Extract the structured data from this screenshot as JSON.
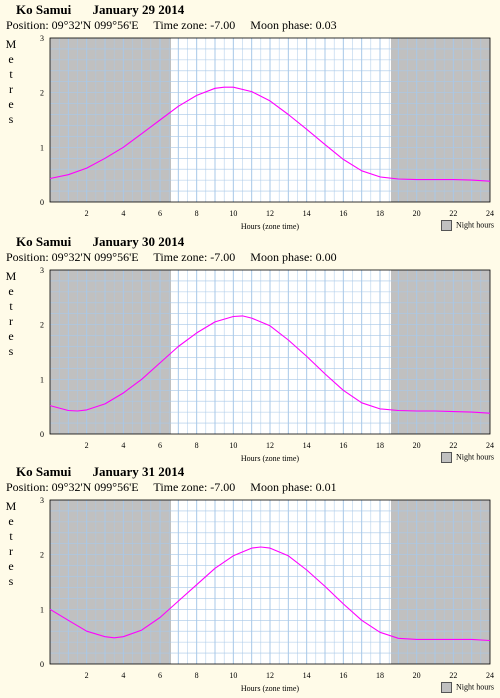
{
  "y_axis_label": "Metres",
  "x_axis_label": "Hours (zone time)",
  "legend": {
    "label": "Night hours",
    "color": "#c0c0c0"
  },
  "colors": {
    "curve": "#ff00ff",
    "grid": "#a8c8e8",
    "night": "#c0c0c0",
    "background": "#fffbe8"
  },
  "panels": [
    {
      "location": "Ko Samui",
      "date": "January 29 2014",
      "position": "Position: 09°32'N 099°56'E",
      "timezone": "Time zone:  -7.00",
      "moon": "Moon phase: 0.03"
    },
    {
      "location": "Ko Samui",
      "date": "January 30 2014",
      "position": "Position: 09°32'N 099°56'E",
      "timezone": "Time zone:  -7.00",
      "moon": "Moon phase: 0.00"
    },
    {
      "location": "Ko Samui",
      "date": "January 31 2014",
      "position": "Position: 09°32'N 099°56'E",
      "timezone": "Time zone:  -7.00",
      "moon": "Moon phase: 0.01"
    }
  ],
  "chart_data": [
    {
      "type": "line",
      "title": "Ko Samui January 29 2014",
      "xlabel": "Hours (zone time)",
      "ylabel": "Metres",
      "xlim": [
        0,
        24
      ],
      "ylim": [
        0,
        3
      ],
      "xticks": [
        2,
        4,
        6,
        8,
        10,
        12,
        14,
        16,
        18,
        20,
        22,
        24
      ],
      "yticks": [
        0,
        1,
        2,
        3
      ],
      "night_hours": [
        [
          0,
          6.6
        ],
        [
          18.6,
          24
        ]
      ],
      "grid": true,
      "series": [
        {
          "x": [
            0,
            1,
            2,
            3,
            4,
            5,
            6,
            7,
            8,
            9,
            9.5,
            10,
            11,
            12,
            13,
            14,
            15,
            16,
            17,
            18,
            19,
            20,
            21,
            22,
            23,
            24
          ],
          "values": [
            0.43,
            0.5,
            0.62,
            0.8,
            1.0,
            1.25,
            1.5,
            1.75,
            1.95,
            2.08,
            2.1,
            2.1,
            2.02,
            1.85,
            1.6,
            1.33,
            1.05,
            0.78,
            0.57,
            0.46,
            0.42,
            0.41,
            0.41,
            0.41,
            0.4,
            0.38
          ]
        }
      ]
    },
    {
      "type": "line",
      "title": "Ko Samui January 30 2014",
      "xlabel": "Hours (zone time)",
      "ylabel": "Metres",
      "xlim": [
        0,
        24
      ],
      "ylim": [
        0,
        3
      ],
      "xticks": [
        2,
        4,
        6,
        8,
        10,
        12,
        14,
        16,
        18,
        20,
        22,
        24
      ],
      "yticks": [
        0,
        1,
        2,
        3
      ],
      "night_hours": [
        [
          0,
          6.6
        ],
        [
          18.6,
          24
        ]
      ],
      "grid": true,
      "series": [
        {
          "x": [
            0,
            1,
            1.5,
            2,
            3,
            4,
            5,
            6,
            7,
            8,
            9,
            10,
            10.5,
            11,
            12,
            13,
            14,
            15,
            16,
            17,
            18,
            19,
            20,
            21,
            22,
            23,
            24
          ],
          "values": [
            0.52,
            0.43,
            0.42,
            0.44,
            0.55,
            0.75,
            1.0,
            1.3,
            1.6,
            1.85,
            2.05,
            2.15,
            2.16,
            2.12,
            1.98,
            1.72,
            1.42,
            1.1,
            0.8,
            0.57,
            0.46,
            0.43,
            0.42,
            0.42,
            0.41,
            0.4,
            0.38
          ]
        }
      ]
    },
    {
      "type": "line",
      "title": "Ko Samui January 31 2014",
      "xlabel": "Hours (zone time)",
      "ylabel": "Metres",
      "xlim": [
        0,
        24
      ],
      "ylim": [
        0,
        3
      ],
      "xticks": [
        2,
        4,
        6,
        8,
        10,
        12,
        14,
        16,
        18,
        20,
        22,
        24
      ],
      "yticks": [
        0,
        1,
        2,
        3
      ],
      "night_hours": [
        [
          0,
          6.6
        ],
        [
          18.6,
          24
        ]
      ],
      "grid": true,
      "series": [
        {
          "x": [
            0,
            1,
            2,
            3,
            3.5,
            4,
            5,
            6,
            7,
            8,
            9,
            10,
            11,
            11.5,
            12,
            13,
            14,
            15,
            16,
            17,
            18,
            19,
            20,
            21,
            22,
            23,
            24
          ],
          "values": [
            1.0,
            0.8,
            0.6,
            0.5,
            0.48,
            0.5,
            0.62,
            0.85,
            1.15,
            1.45,
            1.75,
            1.98,
            2.12,
            2.14,
            2.12,
            1.98,
            1.72,
            1.42,
            1.1,
            0.8,
            0.58,
            0.47,
            0.45,
            0.45,
            0.45,
            0.45,
            0.43
          ]
        }
      ]
    }
  ]
}
